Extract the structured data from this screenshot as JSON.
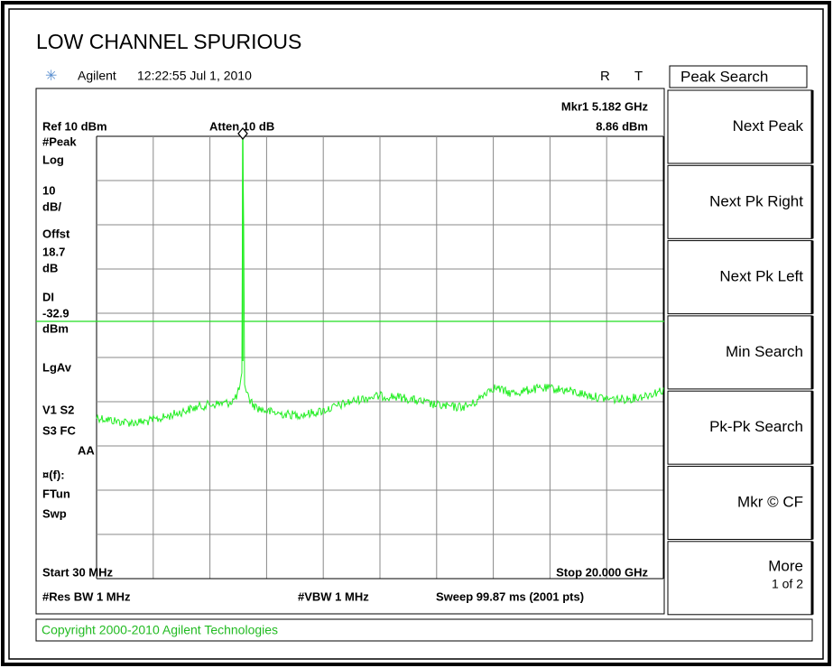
{
  "header": {
    "title": "LOW CHANNEL SPURIOUS",
    "instrument": "Agilent",
    "timestamp": "12:22:55  Jul 1, 2010",
    "flags": [
      "R",
      "T"
    ]
  },
  "display": {
    "marker": "Mkr1  5.182 GHz",
    "marker_level": "8.86 dBm",
    "reference": "Ref 10 dBm",
    "attenuation": "Atten 10 dB",
    "annotations": [
      "#Peak",
      "Log",
      "10",
      "dB/",
      "Offst",
      "18.7",
      "dB",
      "DI",
      "-32.9",
      "dBm",
      "LgAv",
      "V1  S2",
      "S3  FC",
      "AA",
      "¤(f):",
      "FTun",
      "Swp"
    ],
    "start": "Start 30 MHz",
    "stop": "Stop 20.000 GHz",
    "res_bw": "#Res BW 1 MHz",
    "vbw": "#VBW 1 MHz",
    "sweep": "Sweep 99.87 ms (2001 pts)"
  },
  "softkeys": {
    "menu": "Peak Search",
    "keys": [
      [
        "Next Peak"
      ],
      [
        "Next Pk Right"
      ],
      [
        "Next Pk Left"
      ],
      [
        "Min Search"
      ],
      [
        "Pk-Pk Search"
      ],
      [
        "Mkr © CF"
      ],
      [
        "More",
        "1 of 2"
      ]
    ]
  },
  "footer": {
    "copyright": "Copyright 2000-2010 Agilent Technologies"
  }
}
